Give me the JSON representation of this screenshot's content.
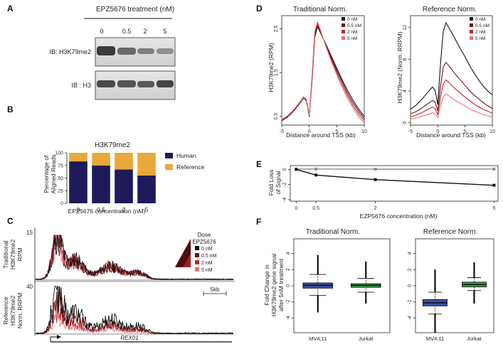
{
  "panel_labels": {
    "a": "A",
    "b": "B",
    "c": "C",
    "d": "D",
    "e": "E",
    "f": "F"
  },
  "panelA": {
    "title": "EPZ5676 treatment (nM)",
    "doses": [
      "0",
      "0.5",
      "2",
      "5"
    ],
    "blot1_label": "IB: H3K79me2",
    "blot2_label": "IB : H3"
  },
  "panelB": {
    "title": "H3K79me2",
    "ylabel_line1": "Percentage of",
    "ylabel_line2": "Aligned Reads",
    "xlabel": "EPZ5676 concentration (nM)",
    "legend": [
      "Human",
      "Reference"
    ]
  },
  "panelC": {
    "top_label_line1": "Traditional",
    "top_label_line2": "H3K79me2",
    "top_label_line3": "RPM",
    "bottom_label_line1": "Reference",
    "bottom_label_line2": "H3K79me2",
    "bottom_label_line3": "Norm. RRPM",
    "top_ymax": "15",
    "bottom_ymax": "40",
    "legend_title1": "Dose",
    "legend_title2": "EPZ5676",
    "legend": [
      "0 nM",
      "0.5 nM",
      "2 nM",
      "5 nM"
    ],
    "scale_label": "5kb",
    "gene": "REX01"
  },
  "panelD": {
    "left_title": "Traditional Norm.",
    "right_title": "Reference Norm.",
    "left_ylabel": "H3K79me2 (RPM)",
    "right_ylabel": "H3K79me2 (Norm. RRPM)",
    "xlabel": "Distance around TSS (kb)",
    "legend": [
      "0 nM",
      "0.5 nM",
      "2 nM",
      "5 nM"
    ]
  },
  "panelE": {
    "ylabel_line1": "Fold Loss",
    "ylabel_line2": "of Signal",
    "xlabel": "EZP5676 concentration (nM)"
  },
  "panelF": {
    "left_title": "Traditional Norm.",
    "right_title": "Reference Norm.",
    "ylabel_line1": "Fold Change in",
    "ylabel_line2": "H3K79me2 gene signal",
    "ylabel_line3": "after 5nM treatment",
    "groups": [
      "MV4;11",
      "Jurkat"
    ]
  },
  "colors": {
    "human": "#1f1a5a",
    "reference": "#e9a83c",
    "dose_0": "#111111",
    "dose_05": "#6b1414",
    "dose_2": "#c0272d",
    "dose_5": "#e5737a",
    "mv411_box": "#3a4fa8",
    "jurkat_box": "#3c9a48"
  },
  "chart_data": [
    {
      "id": "B",
      "type": "bar",
      "title": "H3K79me2",
      "categories": [
        "0",
        "0.5",
        "2",
        "5"
      ],
      "series": [
        {
          "name": "Human",
          "values": [
            83,
            75,
            67,
            55
          ]
        },
        {
          "name": "Reference",
          "values": [
            17,
            25,
            33,
            45
          ]
        }
      ],
      "ylim": [
        0,
        100
      ],
      "yticks": [
        "0",
        "25",
        "50",
        "75",
        "100"
      ],
      "xlabel": "EPZ5676 concentration (nM)",
      "ylabel": "Percentage of Aligned Reads"
    },
    {
      "id": "D-left",
      "type": "line",
      "title": "Traditional Norm.",
      "x": [
        -5,
        -4,
        -3,
        -2,
        -1,
        -0.5,
        0,
        0.5,
        1,
        1.5,
        2,
        3,
        4,
        5,
        6,
        7,
        8,
        9,
        10
      ],
      "series": [
        {
          "name": "0 nM",
          "values": [
            0.4,
            0.48,
            0.6,
            0.75,
            0.92,
            0.85,
            0.5,
            1.3,
            2.3,
            2.55,
            2.42,
            2.15,
            1.88,
            1.6,
            1.33,
            1.08,
            0.86,
            0.66,
            0.5
          ]
        },
        {
          "name": "0.5 nM",
          "values": [
            0.41,
            0.49,
            0.61,
            0.76,
            0.93,
            0.86,
            0.51,
            1.34,
            2.36,
            2.6,
            2.45,
            2.14,
            1.84,
            1.55,
            1.28,
            1.02,
            0.8,
            0.61,
            0.45
          ]
        },
        {
          "name": "2 nM",
          "values": [
            0.42,
            0.5,
            0.62,
            0.77,
            0.94,
            0.87,
            0.52,
            1.37,
            2.4,
            2.63,
            2.47,
            2.12,
            1.8,
            1.5,
            1.22,
            0.96,
            0.74,
            0.55,
            0.4
          ]
        },
        {
          "name": "5 nM",
          "values": [
            0.43,
            0.51,
            0.63,
            0.78,
            0.95,
            0.88,
            0.53,
            1.4,
            2.44,
            2.66,
            2.49,
            2.1,
            1.76,
            1.45,
            1.16,
            0.9,
            0.68,
            0.49,
            0.35
          ]
        }
      ],
      "xlim": [
        -5,
        10
      ],
      "ylim": [
        0.3,
        2.8
      ],
      "xticks": [
        "-5",
        "0",
        "5",
        "10"
      ],
      "yticks": [
        "0.5",
        "1.5",
        "2.5"
      ],
      "xlabel": "Distance around TSS (kb)",
      "ylabel": "H3K79me2 (RPM)"
    },
    {
      "id": "D-right",
      "type": "line",
      "title": "Reference Norm.",
      "x": [
        -5,
        -4,
        -3,
        -2,
        -1,
        -0.5,
        0,
        0.5,
        1,
        1.5,
        2,
        3,
        4,
        5,
        6,
        7,
        8,
        9,
        10
      ],
      "series": [
        {
          "name": "0 nM",
          "values": [
            1.7,
            2.2,
            2.9,
            3.7,
            4.5,
            4.1,
            2.3,
            7.5,
            11.5,
            12.6,
            12.0,
            10.8,
            9.5,
            8.3,
            7.0,
            5.9,
            4.9,
            4.1,
            3.5
          ]
        },
        {
          "name": "0.5 nM",
          "values": [
            1.1,
            1.4,
            1.8,
            2.3,
            2.8,
            2.6,
            1.5,
            4.6,
            7.0,
            7.6,
            7.2,
            6.3,
            5.5,
            4.7,
            3.9,
            3.3,
            2.7,
            2.2,
            1.8
          ]
        },
        {
          "name": "2 nM",
          "values": [
            0.75,
            0.95,
            1.25,
            1.6,
            1.95,
            1.8,
            1.0,
            3.2,
            4.9,
            5.4,
            5.1,
            4.4,
            3.8,
            3.2,
            2.7,
            2.2,
            1.8,
            1.5,
            1.2
          ]
        },
        {
          "name": "5 nM",
          "values": [
            0.45,
            0.6,
            0.8,
            1.0,
            1.25,
            1.15,
            0.65,
            2.1,
            3.3,
            3.6,
            3.4,
            2.9,
            2.5,
            2.1,
            1.7,
            1.4,
            1.1,
            0.9,
            0.7
          ]
        }
      ],
      "xlim": [
        -5,
        10
      ],
      "ylim": [
        -0.3,
        13.5
      ],
      "xticks": [
        "-5",
        "0",
        "5",
        "10"
      ],
      "yticks": [
        "0",
        "4",
        "8",
        "12"
      ],
      "xlabel": "Distance around TSS (kb)",
      "ylabel": "H3K79me2 (Norm. RRPM)"
    },
    {
      "id": "E",
      "type": "line",
      "x": [
        0,
        0.5,
        2,
        5
      ],
      "series": [
        {
          "name": "Traditional",
          "values": [
            0.05,
            0.05,
            0.03,
            0.05
          ]
        },
        {
          "name": "Reference",
          "values": [
            0,
            -0.75,
            -1.35,
            -2.1
          ]
        }
      ],
      "xlim": [
        -0.15,
        5.1
      ],
      "ylim": [
        -4.2,
        0.5
      ],
      "xticks": [
        "0",
        "0.5",
        "2",
        "5"
      ],
      "yticks": [
        "0",
        "-2",
        "-4"
      ],
      "xlabel": "EZP5676 concentration (nM)",
      "ylabel": "Fold Loss of Signal"
    },
    {
      "id": "F-left",
      "type": "box",
      "title": "Traditional Norm.",
      "categories": [
        "MV4;11",
        "Jurkat"
      ],
      "boxes": [
        {
          "name": "MV4;11",
          "q1": -0.3,
          "median": 0.05,
          "q3": 0.35,
          "whisker_low": -1.2,
          "whisker_high": 1.4,
          "out_low": -3.3,
          "out_high": 3.8
        },
        {
          "name": "Jurkat",
          "q1": -0.2,
          "median": 0.05,
          "q3": 0.25,
          "whisker_low": -0.8,
          "whisker_high": 0.9,
          "out_low": -2.2,
          "out_high": 3.0
        }
      ],
      "ylim": [
        -5.8,
        5.8
      ],
      "yticks": [
        "-4",
        "-2",
        "0",
        "2",
        "4"
      ],
      "ylabel": "Fold Change in H3K79me2 gene signal after 5nM treatment"
    },
    {
      "id": "F-right",
      "type": "box",
      "title": "Reference Norm.",
      "categories": [
        "MV4;11",
        "Jurkat"
      ],
      "boxes": [
        {
          "name": "MV4;11",
          "q1": -2.5,
          "median": -2.1,
          "q3": -1.7,
          "whisker_low": -3.5,
          "whisker_high": -0.8,
          "out_low": -5.8,
          "out_high": 2.0
        },
        {
          "name": "Jurkat",
          "q1": -0.15,
          "median": 0.15,
          "q3": 0.45,
          "whisker_low": -0.6,
          "whisker_high": 1.0,
          "out_low": -2.2,
          "out_high": 2.9
        }
      ],
      "ylim": [
        -5.8,
        5.8
      ],
      "yticks": [
        "-4",
        "-2",
        "0",
        "2",
        "4"
      ]
    }
  ]
}
